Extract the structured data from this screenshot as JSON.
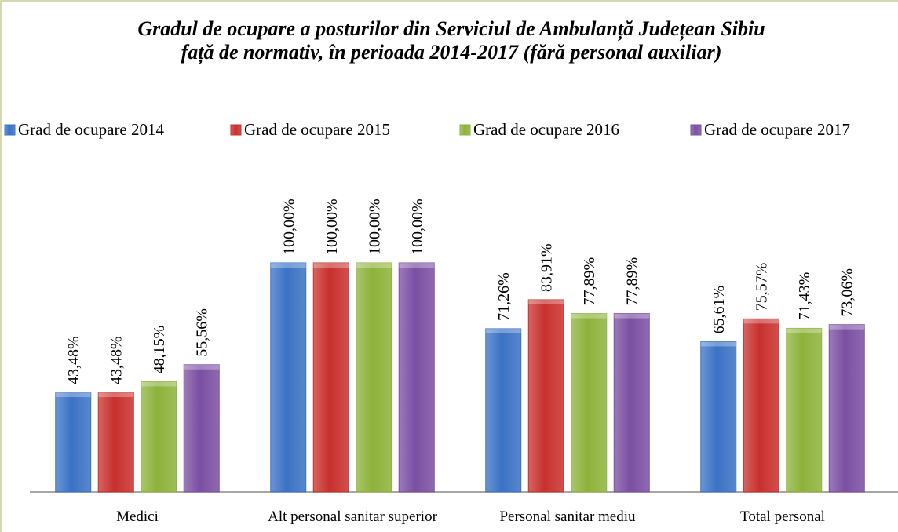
{
  "chart_data": {
    "type": "bar",
    "title": "Gradul de ocupare a posturilor din Serviciul de Ambulanță Județean Sibiu față de normativ, în perioada 2014-2017 (fără personal auxiliar)",
    "categories": [
      "Medici",
      "Alt personal sanitar superior",
      "Personal sanitar mediu",
      "Total personal"
    ],
    "series": [
      {
        "name": "Grad de ocupare 2014",
        "color": "#3b72c4",
        "values": [
          43.48,
          100,
          71.26,
          65.61
        ],
        "value_labels": [
          "43,48%",
          "100,00%",
          "71,26%",
          "65,61%"
        ]
      },
      {
        "name": "Grad de ocupare 2015",
        "color": "#c8302d",
        "values": [
          43.48,
          100,
          83.91,
          75.57
        ],
        "value_labels": [
          "43,48%",
          "100,00%",
          "83,91%",
          "75,57%"
        ]
      },
      {
        "name": "Grad de ocupare 2016",
        "color": "#8db23a",
        "values": [
          48.15,
          100,
          77.89,
          71.43
        ],
        "value_labels": [
          "48,15%",
          "100,00%",
          "77,89%",
          "71,43%"
        ]
      },
      {
        "name": "Grad de ocupare 2017",
        "color": "#7a4fa2",
        "values": [
          55.56,
          100,
          77.89,
          73.06
        ],
        "value_labels": [
          "55,56%",
          "100,00%",
          "77,89%",
          "73,06%"
        ]
      }
    ],
    "legend": "top"
  }
}
